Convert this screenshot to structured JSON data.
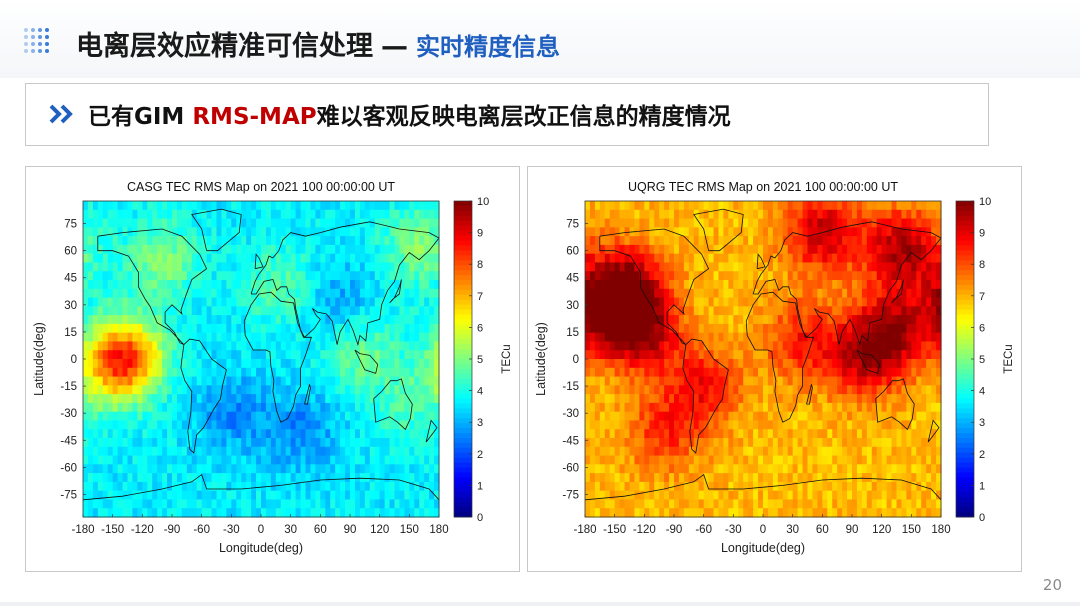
{
  "slide": {
    "title": "电离层效应精准可信处理",
    "dash": "—",
    "subtitle": "实时精度信息",
    "banner_prefix": "已有GIM ",
    "banner_highlight": "RMS-MAP",
    "banner_suffix": "难以客观反映电离层改正信息的精度情况",
    "page_number": "20"
  },
  "chart_data": [
    {
      "type": "heatmap",
      "title": "CASG TEC RMS Map on 2021 100 00:00:00 UT",
      "xlabel": "Longitude(deg)",
      "ylabel": "Latitude(deg)",
      "colorbar_label": "TECu",
      "xlim": [
        -180,
        180
      ],
      "ylim": [
        -87.5,
        87.5
      ],
      "clim": [
        0,
        10
      ],
      "xticks": [
        "-180",
        "-150",
        "-120",
        "-90",
        "-60",
        "-30",
        "0",
        "30",
        "60",
        "90",
        "120",
        "150",
        "180"
      ],
      "yticks": [
        "75",
        "60",
        "45",
        "30",
        "15",
        "0",
        "-15",
        "-30",
        "-45",
        "-60",
        "-75"
      ],
      "cticks": [
        "0",
        "1",
        "2",
        "3",
        "4",
        "5",
        "6",
        "7",
        "8",
        "9",
        "10"
      ],
      "base_value": 3.6,
      "hotspots": [
        {
          "lon": -135,
          "lat": 2,
          "value": 6.8
        },
        {
          "lon": -150,
          "lat": -5,
          "value": 5.8
        },
        {
          "lon": -100,
          "lat": 55,
          "value": 5.0
        },
        {
          "lon": 160,
          "lat": 62,
          "value": 5.0
        },
        {
          "lon": 100,
          "lat": 5,
          "value": 4.9
        },
        {
          "lon": 20,
          "lat": 40,
          "value": 4.6
        },
        {
          "lon": 150,
          "lat": -25,
          "value": 4.4
        },
        {
          "lon": -30,
          "lat": -30,
          "value": 2.6
        },
        {
          "lon": 40,
          "lat": -40,
          "value": 2.6
        },
        {
          "lon": 80,
          "lat": 30,
          "value": 2.7
        }
      ]
    },
    {
      "type": "heatmap",
      "title": "UQRG TEC RMS Map on 2021 100 00:00:00 UT",
      "xlabel": "Longitude(deg)",
      "ylabel": "Latitude(deg)",
      "colorbar_label": "TECu",
      "xlim": [
        -180,
        180
      ],
      "ylim": [
        -87.5,
        87.5
      ],
      "clim": [
        0,
        10
      ],
      "xticks": [
        "-180",
        "-150",
        "-120",
        "-90",
        "-60",
        "-30",
        "0",
        "30",
        "60",
        "90",
        "120",
        "150",
        "180"
      ],
      "yticks": [
        "75",
        "60",
        "45",
        "30",
        "15",
        "0",
        "-15",
        "-30",
        "-45",
        "-60",
        "-75"
      ],
      "cticks": [
        "0",
        "1",
        "2",
        "3",
        "4",
        "5",
        "6",
        "7",
        "8",
        "9",
        "10"
      ],
      "base_value": 6.9,
      "hotspots": [
        {
          "lon": -140,
          "lat": 40,
          "value": 9.8
        },
        {
          "lon": -160,
          "lat": 25,
          "value": 9.4
        },
        {
          "lon": -120,
          "lat": 15,
          "value": 9.3
        },
        {
          "lon": 140,
          "lat": 60,
          "value": 9.6
        },
        {
          "lon": 60,
          "lat": 70,
          "value": 9.3
        },
        {
          "lon": 130,
          "lat": 15,
          "value": 9.4
        },
        {
          "lon": 100,
          "lat": 0,
          "value": 8.9
        },
        {
          "lon": -60,
          "lat": -15,
          "value": 8.6
        },
        {
          "lon": 40,
          "lat": 10,
          "value": 8.5
        },
        {
          "lon": -100,
          "lat": -40,
          "value": 8.3
        }
      ]
    }
  ]
}
